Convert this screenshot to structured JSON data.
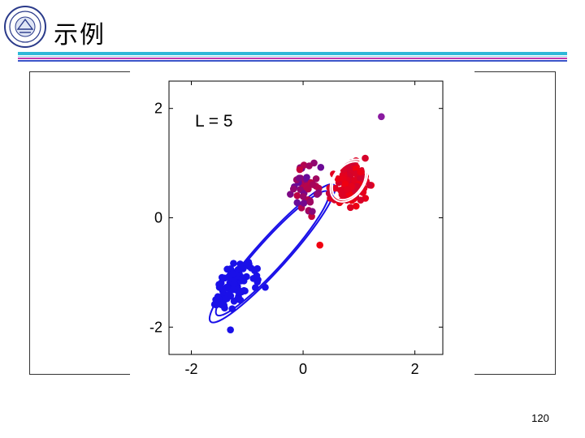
{
  "slide": {
    "title": "示例",
    "page_number": "120",
    "colors": {
      "bar_cyan": "#2fb8d8",
      "bar_magenta": "#c23bb0",
      "bar_blue": "#3b53c9"
    },
    "logo_icon": "university-seal-icon"
  },
  "chart_data": {
    "type": "scatter",
    "title": "",
    "annotation": "L = 5",
    "xlabel": "",
    "ylabel": "",
    "xlim": [
      -2.4,
      2.5
    ],
    "ylim": [
      -2.5,
      2.5
    ],
    "xticks": [
      -2,
      0,
      2
    ],
    "yticks": [
      -2,
      0,
      2
    ],
    "xtick_labels": [
      "-2",
      "0",
      "2"
    ],
    "ytick_labels": [
      "-2",
      "0",
      "2"
    ],
    "grid": false,
    "colors": {
      "cluster_a": "#1a10e8",
      "cluster_b": "#f00010",
      "mix": "#8a1aa0"
    },
    "clusters": [
      {
        "center": [
          -1.2,
          -1.2
        ],
        "spread": [
          0.28,
          0.42
        ],
        "count": 110,
        "color": "#1a10e8"
      },
      {
        "center": [
          0.85,
          0.65
        ],
        "spread": [
          0.25,
          0.3
        ],
        "count": 130,
        "color": "#f00010"
      },
      {
        "center": [
          0.1,
          0.5
        ],
        "spread": [
          0.28,
          0.35
        ],
        "count": 45,
        "color": "#8a1aa0"
      }
    ],
    "ellipses": [
      {
        "cx": -0.55,
        "cy": -0.65,
        "rx": 1.65,
        "ry": 0.28,
        "angle_deg": 48,
        "color": "#1a10e8",
        "rings": 2
      },
      {
        "cx": 0.82,
        "cy": 0.68,
        "rx": 0.42,
        "ry": 0.28,
        "angle_deg": 55,
        "color": "#ffffff",
        "rings": 2
      }
    ]
  }
}
